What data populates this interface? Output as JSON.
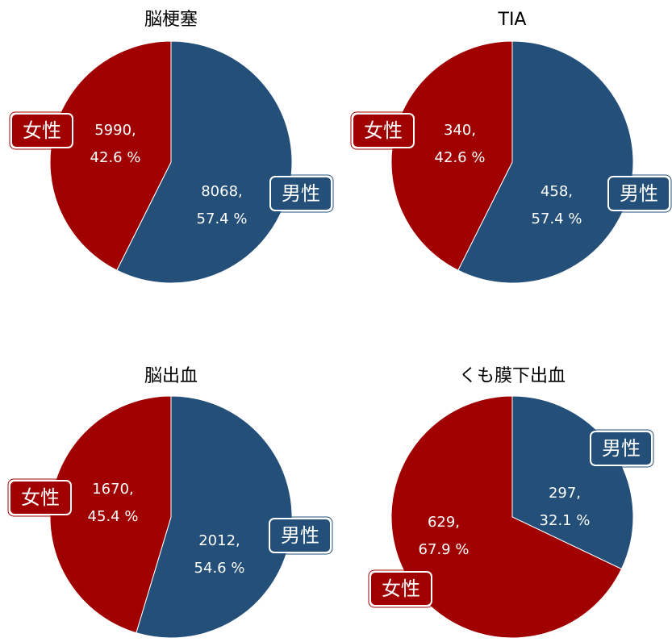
{
  "chart_data": [
    {
      "type": "pie",
      "title": "脳梗塞",
      "categories": [
        "男性",
        "女性"
      ],
      "values": [
        8068,
        5990
      ],
      "value_labels": [
        "8068,",
        "5990,"
      ],
      "percents": [
        57.4,
        42.6
      ],
      "percent_labels": [
        "57.4 %",
        "42.6 %"
      ],
      "colors": [
        "#234f79",
        "#a00000"
      ]
    },
    {
      "type": "pie",
      "title": "TIA",
      "categories": [
        "男性",
        "女性"
      ],
      "values": [
        458,
        340
      ],
      "value_labels": [
        "458,",
        "340,"
      ],
      "percents": [
        57.4,
        42.6
      ],
      "percent_labels": [
        "57.4 %",
        "42.6 %"
      ],
      "colors": [
        "#234f79",
        "#a00000"
      ]
    },
    {
      "type": "pie",
      "title": "脳出血",
      "categories": [
        "男性",
        "女性"
      ],
      "values": [
        2012,
        1670
      ],
      "value_labels": [
        "2012,",
        "1670,"
      ],
      "percents": [
        54.6,
        45.4
      ],
      "percent_labels": [
        "54.6 %",
        "45.4 %"
      ],
      "colors": [
        "#234f79",
        "#a00000"
      ]
    },
    {
      "type": "pie",
      "title": "くも膜下出血",
      "categories": [
        "男性",
        "女性"
      ],
      "values": [
        297,
        629
      ],
      "value_labels": [
        "297,",
        "629,"
      ],
      "percents": [
        32.1,
        67.9
      ],
      "percent_labels": [
        "32.1 %",
        "67.9 %"
      ],
      "colors": [
        "#234f79",
        "#a00000"
      ]
    }
  ]
}
